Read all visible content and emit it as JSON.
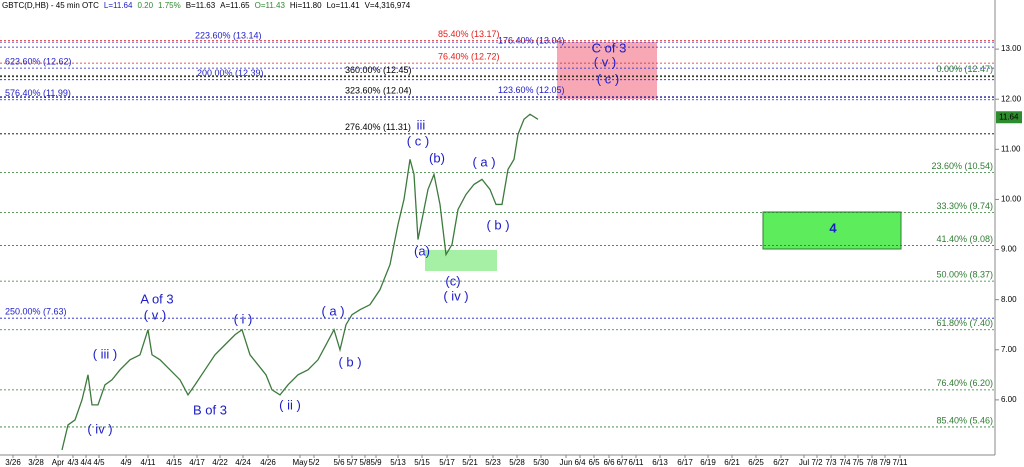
{
  "chart_data": {
    "type": "line",
    "header": [
      {
        "text": "GBTC(D,HB) - 45 min OTC",
        "color": "#000000"
      },
      {
        "text": "L=11.64",
        "color": "#1c1cc8"
      },
      {
        "text": "0.20",
        "color": "#2e8b2e"
      },
      {
        "text": "1.75%",
        "color": "#2e8b2e"
      },
      {
        "text": "B=11.63",
        "color": "#000000"
      },
      {
        "text": "A=11.65",
        "color": "#000000"
      },
      {
        "text": "O=11.43",
        "color": "#2e8b2e"
      },
      {
        "text": "Hi=11.80",
        "color": "#000000"
      },
      {
        "text": "Lo=11.41",
        "color": "#000000"
      },
      {
        "text": "V=4,316,974",
        "color": "#000000"
      }
    ],
    "last_price": {
      "value": 11.64,
      "label": "11.64",
      "color": "#2e8b2e"
    },
    "ylim": [
      4.9,
      13.98
    ],
    "yticks": [
      {
        "value": 6,
        "label": "6.00"
      },
      {
        "value": 7,
        "label": "7.00"
      },
      {
        "value": 8,
        "label": "8.00"
      },
      {
        "value": 9,
        "label": "9.00"
      },
      {
        "value": 10,
        "label": "10.00"
      },
      {
        "value": 11,
        "label": "11.00"
      },
      {
        "value": 12,
        "label": "12.00"
      },
      {
        "value": 13,
        "label": "13.00"
      }
    ],
    "xlim": [
      0,
      99.5
    ],
    "xticks": [
      {
        "value": 1.3,
        "label": "3/26"
      },
      {
        "value": 3.6,
        "label": "3/28"
      },
      {
        "value": 5.8,
        "label": "Apr"
      },
      {
        "value": 7.3,
        "label": "4/3"
      },
      {
        "value": 8.6,
        "label": "4/4"
      },
      {
        "value": 9.9,
        "label": "4/5"
      },
      {
        "value": 12.6,
        "label": "4/9"
      },
      {
        "value": 14.8,
        "label": "4/11"
      },
      {
        "value": 17.4,
        "label": "4/15"
      },
      {
        "value": 19.7,
        "label": "4/17"
      },
      {
        "value": 22,
        "label": "4/22"
      },
      {
        "value": 24.3,
        "label": "4/24"
      },
      {
        "value": 26.8,
        "label": "4/26"
      },
      {
        "value": 30,
        "label": "May"
      },
      {
        "value": 31.4,
        "label": "5/2"
      },
      {
        "value": 33.9,
        "label": "5/6"
      },
      {
        "value": 35.2,
        "label": "5/7"
      },
      {
        "value": 36.5,
        "label": "5/8"
      },
      {
        "value": 37.6,
        "label": "5/9"
      },
      {
        "value": 39.8,
        "label": "5/13"
      },
      {
        "value": 42.2,
        "label": "5/15"
      },
      {
        "value": 44.7,
        "label": "5/17"
      },
      {
        "value": 47,
        "label": "5/21"
      },
      {
        "value": 49.3,
        "label": "5/23"
      },
      {
        "value": 51.7,
        "label": "5/28"
      },
      {
        "value": 54.1,
        "label": "5/30"
      },
      {
        "value": 56.6,
        "label": "Jun"
      },
      {
        "value": 58,
        "label": "6/4"
      },
      {
        "value": 59.4,
        "label": "6/5"
      },
      {
        "value": 60.9,
        "label": "6/6"
      },
      {
        "value": 62.2,
        "label": "6/7"
      },
      {
        "value": 63.6,
        "label": "6/11"
      },
      {
        "value": 66,
        "label": "6/13"
      },
      {
        "value": 68.5,
        "label": "6/17"
      },
      {
        "value": 70.8,
        "label": "6/19"
      },
      {
        "value": 73.2,
        "label": "6/21"
      },
      {
        "value": 75.6,
        "label": "6/25"
      },
      {
        "value": 78.1,
        "label": "6/27"
      },
      {
        "value": 80.4,
        "label": "Jul"
      },
      {
        "value": 81.7,
        "label": "7/2"
      },
      {
        "value": 83.1,
        "label": "7/3"
      },
      {
        "value": 84.5,
        "label": "7/4"
      },
      {
        "value": 85.8,
        "label": "7/5"
      },
      {
        "value": 87.2,
        "label": "7/8"
      },
      {
        "value": 88.5,
        "label": "7/9"
      },
      {
        "value": 90,
        "label": "7/11"
      }
    ],
    "series": [
      {
        "name": "GBTC",
        "color": "#3d7a3d",
        "x": [
          6.2,
          6.8,
          7.5,
          8.2,
          8.8,
          9.2,
          9.8,
          10.5,
          11.2,
          12,
          13,
          14,
          14.8,
          15.2,
          16,
          17,
          18,
          18.8,
          19.5,
          20.5,
          21.5,
          22.5,
          23.5,
          24.2,
          25,
          25.8,
          26.6,
          27.2,
          28,
          28.8,
          29.8,
          30.8,
          31.8,
          32.6,
          33.4,
          34,
          34.6,
          35.2,
          36,
          37,
          38,
          39,
          39.8,
          40.4,
          41,
          41.4,
          41.8,
          42.2,
          42.8,
          43.4,
          44,
          44.6,
          45.2,
          45.8,
          46.6,
          47.4,
          48.2,
          49,
          49.6,
          50.2,
          50.8,
          51.4,
          51.8,
          52.4,
          53,
          53.8
        ],
        "values": [
          5.0,
          5.5,
          5.6,
          6.0,
          6.5,
          5.9,
          5.9,
          6.3,
          6.4,
          6.6,
          6.8,
          6.9,
          7.4,
          6.9,
          6.8,
          6.6,
          6.4,
          6.1,
          6.3,
          6.6,
          6.9,
          7.1,
          7.3,
          7.4,
          6.9,
          6.7,
          6.5,
          6.2,
          6.1,
          6.3,
          6.5,
          6.6,
          6.8,
          7.1,
          7.4,
          7.0,
          7.5,
          7.7,
          7.8,
          7.9,
          8.2,
          8.7,
          9.5,
          10.0,
          10.8,
          10.5,
          9.2,
          9.6,
          10.2,
          10.5,
          9.9,
          8.9,
          9.1,
          9.8,
          10.1,
          10.3,
          10.4,
          10.2,
          9.9,
          9.9,
          10.6,
          10.8,
          11.3,
          11.6,
          11.7,
          11.6
        ]
      }
    ],
    "levels": [
      {
        "value": 13.14,
        "label": "223.60% (13.14)",
        "color": "#1c1cc8"
      },
      {
        "value": 12.62,
        "label": "623.60% (12.62)",
        "color": "#1c1cc8"
      },
      {
        "value": 11.99,
        "label": "576.40% (11.99)",
        "color": "#1c1cc8"
      },
      {
        "value": 7.63,
        "label": "250.00% (7.63)",
        "color": "#1c1cc8"
      },
      {
        "value": 12.39,
        "label": "200.00% (12.39)",
        "color": "#1c1cc8"
      },
      {
        "value": 13.04,
        "label": "176.40% (13.04)",
        "color": "#1c1cc8"
      },
      {
        "value": 12.05,
        "label": "123.60% (12.05)",
        "color": "#1c1cc8"
      },
      {
        "value": 12.45,
        "label": "360.00% (12.45)",
        "color": "#000000"
      },
      {
        "value": 12.04,
        "label": "323.60% (12.04)",
        "color": "#000000"
      },
      {
        "value": 11.31,
        "label": "276.40% (11.31)",
        "color": "#000000"
      },
      {
        "value": 13.17,
        "label": "85.40% (13.17)",
        "color": "#e0201b"
      },
      {
        "value": 12.72,
        "label": "76.40% (12.72)",
        "color": "#e0201b"
      },
      {
        "value": 12.47,
        "label": "0.00% (12.47)",
        "color": "#2e7d32"
      },
      {
        "value": 10.54,
        "label": "23.60% (10.54)",
        "color": "#2e7d32"
      },
      {
        "value": 9.74,
        "label": "33.30% (9.74)",
        "color": "#2e7d32"
      },
      {
        "value": 9.08,
        "label": "41.40% (9.08)",
        "color": "#2e7d32"
      },
      {
        "value": 8.37,
        "label": "50.00% (8.37)",
        "color": "#2e7d32"
      },
      {
        "value": 7.4,
        "label": "61.80% (7.40)",
        "color": "#2e7d32"
      },
      {
        "value": 6.2,
        "label": "76.40% (6.20)",
        "color": "#2e7d32"
      },
      {
        "value": 5.46,
        "label": "85.40% (5.46)",
        "color": "#2e7d32"
      }
    ],
    "annotations": [
      "( iii )",
      "( iv )",
      "A of 3",
      "( v )",
      "B of 3",
      "( i )",
      "( ii )",
      "( a )",
      "( b )",
      "iii",
      "( c )",
      "(b)",
      "(a)",
      "(c)",
      "( iv )",
      "( a )",
      "( b )",
      "C of 3",
      "( v )",
      "( c )",
      "4"
    ]
  }
}
